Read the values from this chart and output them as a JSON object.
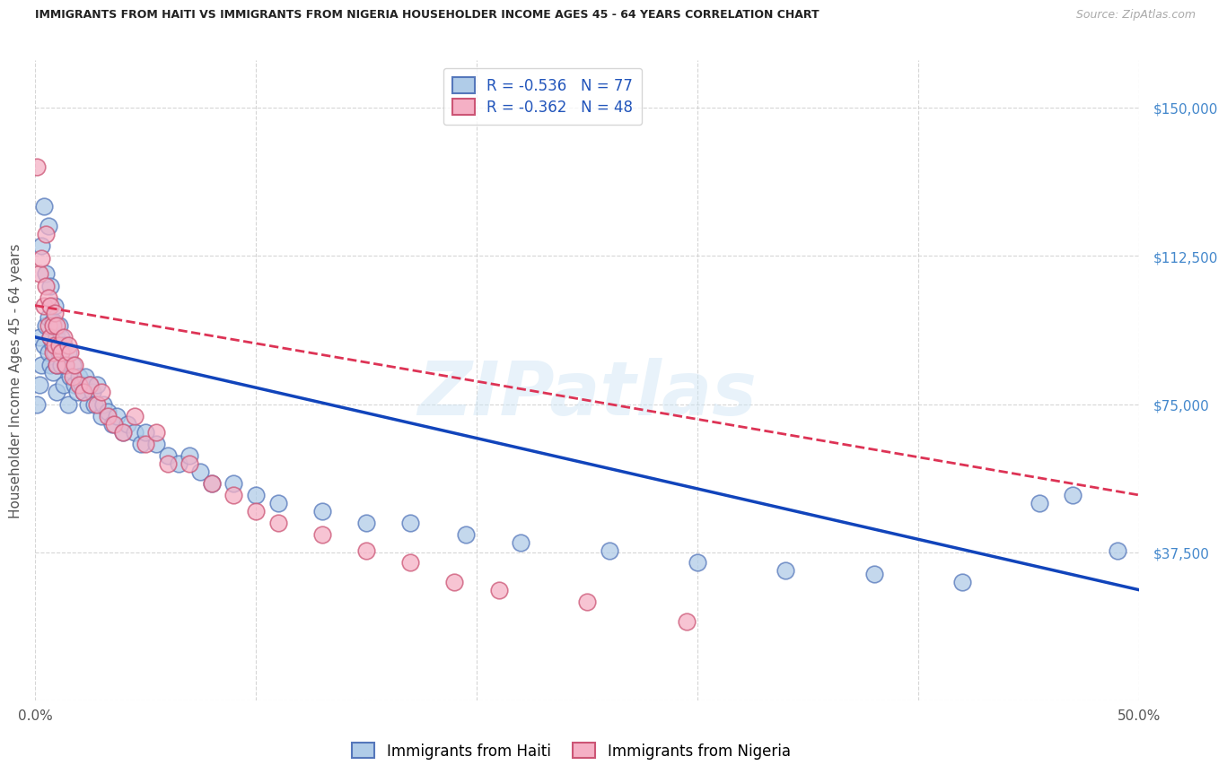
{
  "title": "IMMIGRANTS FROM HAITI VS IMMIGRANTS FROM NIGERIA HOUSEHOLDER INCOME AGES 45 - 64 YEARS CORRELATION CHART",
  "source": "Source: ZipAtlas.com",
  "ylabel": "Householder Income Ages 45 - 64 years",
  "xlim": [
    0.0,
    0.5
  ],
  "ylim": [
    0,
    162000
  ],
  "xticks": [
    0.0,
    0.1,
    0.2,
    0.3,
    0.4,
    0.5
  ],
  "xtick_labels": [
    "0.0%",
    "",
    "",
    "",
    "",
    "50.0%"
  ],
  "yticks": [
    0,
    37500,
    75000,
    112500,
    150000
  ],
  "ytick_labels": [
    "",
    "$37,500",
    "$75,000",
    "$112,500",
    "$150,000"
  ],
  "haiti_color": "#b0cce8",
  "nigeria_color": "#f5b0c5",
  "haiti_edge": "#5577bb",
  "nigeria_edge": "#cc5575",
  "haiti_line_color": "#1144bb",
  "nigeria_line_color": "#dd3355",
  "haiti_R": -0.536,
  "haiti_N": 77,
  "nigeria_R": -0.362,
  "nigeria_N": 48,
  "watermark": "ZIPatlas",
  "haiti_x": [
    0.001,
    0.002,
    0.002,
    0.003,
    0.003,
    0.004,
    0.004,
    0.005,
    0.005,
    0.006,
    0.006,
    0.006,
    0.007,
    0.007,
    0.007,
    0.008,
    0.008,
    0.008,
    0.009,
    0.009,
    0.01,
    0.01,
    0.01,
    0.011,
    0.011,
    0.012,
    0.012,
    0.013,
    0.013,
    0.014,
    0.015,
    0.015,
    0.016,
    0.017,
    0.018,
    0.019,
    0.02,
    0.021,
    0.022,
    0.023,
    0.024,
    0.025,
    0.026,
    0.027,
    0.028,
    0.03,
    0.031,
    0.033,
    0.035,
    0.037,
    0.04,
    0.042,
    0.045,
    0.048,
    0.05,
    0.055,
    0.06,
    0.065,
    0.07,
    0.075,
    0.08,
    0.09,
    0.1,
    0.11,
    0.13,
    0.15,
    0.17,
    0.195,
    0.22,
    0.26,
    0.3,
    0.34,
    0.38,
    0.42,
    0.455,
    0.47,
    0.49
  ],
  "haiti_y": [
    75000,
    80000,
    92000,
    85000,
    115000,
    90000,
    125000,
    95000,
    108000,
    88000,
    97000,
    120000,
    85000,
    92000,
    105000,
    90000,
    83000,
    96000,
    88000,
    100000,
    85000,
    92000,
    78000,
    95000,
    88000,
    85000,
    92000,
    80000,
    90000,
    85000,
    88000,
    75000,
    82000,
    85000,
    80000,
    78000,
    82000,
    80000,
    78000,
    82000,
    75000,
    80000,
    78000,
    75000,
    80000,
    72000,
    75000,
    73000,
    70000,
    72000,
    68000,
    70000,
    68000,
    65000,
    68000,
    65000,
    62000,
    60000,
    62000,
    58000,
    55000,
    55000,
    52000,
    50000,
    48000,
    45000,
    45000,
    42000,
    40000,
    38000,
    35000,
    33000,
    32000,
    30000,
    50000,
    52000,
    38000
  ],
  "nigeria_x": [
    0.001,
    0.002,
    0.003,
    0.004,
    0.005,
    0.005,
    0.006,
    0.006,
    0.007,
    0.007,
    0.008,
    0.008,
    0.009,
    0.009,
    0.01,
    0.01,
    0.011,
    0.012,
    0.013,
    0.014,
    0.015,
    0.016,
    0.017,
    0.018,
    0.02,
    0.022,
    0.025,
    0.028,
    0.03,
    0.033,
    0.036,
    0.04,
    0.045,
    0.05,
    0.055,
    0.06,
    0.07,
    0.08,
    0.09,
    0.1,
    0.11,
    0.13,
    0.15,
    0.17,
    0.19,
    0.21,
    0.25,
    0.295
  ],
  "nigeria_y": [
    135000,
    108000,
    112000,
    100000,
    105000,
    118000,
    95000,
    102000,
    92000,
    100000,
    88000,
    95000,
    90000,
    98000,
    85000,
    95000,
    90000,
    88000,
    92000,
    85000,
    90000,
    88000,
    82000,
    85000,
    80000,
    78000,
    80000,
    75000,
    78000,
    72000,
    70000,
    68000,
    72000,
    65000,
    68000,
    60000,
    60000,
    55000,
    52000,
    48000,
    45000,
    42000,
    38000,
    35000,
    30000,
    28000,
    25000,
    20000
  ],
  "haiti_trend_x": [
    0.0,
    0.5
  ],
  "haiti_trend_y": [
    92000,
    28000
  ],
  "nigeria_trend_x": [
    0.0,
    0.5
  ],
  "nigeria_trend_y": [
    100000,
    52000
  ]
}
